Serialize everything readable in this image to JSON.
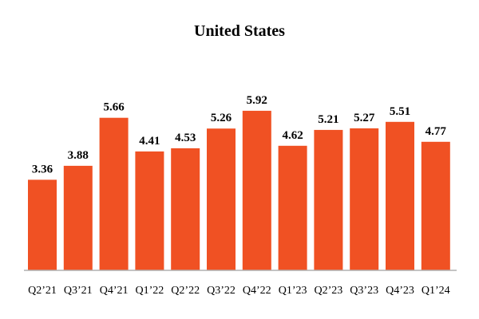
{
  "chart_data": {
    "type": "bar",
    "title": "United States",
    "categories": [
      "Q2’21",
      "Q3’21",
      "Q4’21",
      "Q1’22",
      "Q2’22",
      "Q3’22",
      "Q4’22",
      "Q1’23",
      "Q2’23",
      "Q3’23",
      "Q4’23",
      "Q1’24"
    ],
    "values": [
      3.36,
      3.88,
      5.66,
      4.41,
      4.53,
      5.26,
      5.92,
      4.62,
      5.21,
      5.27,
      5.51,
      4.77
    ],
    "value_labels": [
      "3.36",
      "3.88",
      "5.66",
      "4.41",
      "4.53",
      "5.26",
      "5.92",
      "4.62",
      "5.21",
      "5.27",
      "5.51",
      "4.77"
    ],
    "xlabel": "",
    "ylabel": "",
    "ylim": [
      0,
      6.5
    ],
    "grid": false,
    "legend": "none",
    "bar_color": "#f05123",
    "baseline_color": "#b0b0b0"
  }
}
